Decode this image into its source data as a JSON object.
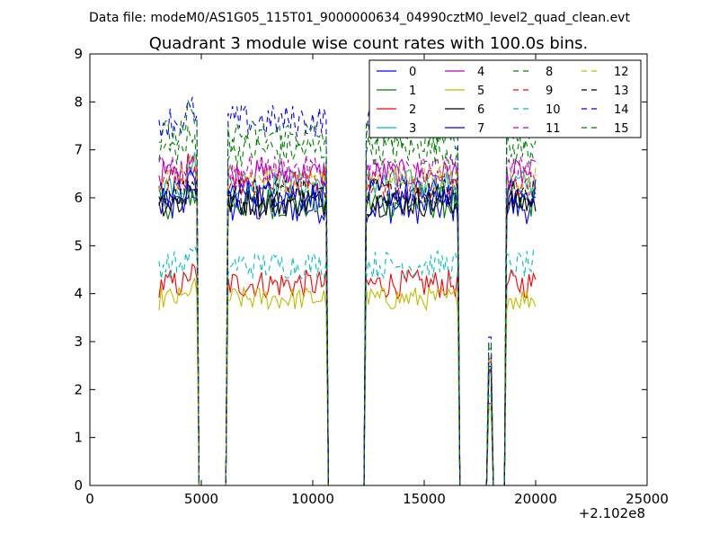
{
  "figure": {
    "suptitle": "Data file: modeM0/AS1G05_115T01_9000000634_04990cztM0_level2_quad_clean.evt"
  },
  "chart_data": {
    "type": "line",
    "title": "Quadrant 3 module wise count rates with 100.0s bins.",
    "xlabel": "",
    "ylabel": "",
    "x_offset_label": "+2.102e8",
    "xlim": [
      0,
      25000
    ],
    "ylim": [
      0,
      9
    ],
    "x_ticks": [
      0,
      5000,
      10000,
      15000,
      20000,
      25000
    ],
    "y_ticks": [
      0,
      1,
      2,
      3,
      4,
      5,
      6,
      7,
      8,
      9
    ],
    "grid": false,
    "legend_placement": "top-right",
    "legend_columns": 4,
    "segments": [
      {
        "start": 3100,
        "end": 4800
      },
      {
        "start": 6200,
        "end": 10600
      },
      {
        "start": 12400,
        "end": 16500
      },
      {
        "start": 18700,
        "end": 20000
      }
    ],
    "gaps": [
      {
        "start": 4800,
        "end": 6200
      },
      {
        "start": 10600,
        "end": 12400
      },
      {
        "start": 16500,
        "end": 18700
      }
    ],
    "spike": {
      "x": 17950,
      "level_fraction": 0.97
    },
    "series": [
      {
        "name": "0",
        "color": "#0000ff",
        "dash": "solid",
        "level": 5.8,
        "noise": 0.35
      },
      {
        "name": "1",
        "color": "#008000",
        "dash": "solid",
        "level": 5.9,
        "noise": 0.35
      },
      {
        "name": "2",
        "color": "#ff0000",
        "dash": "solid",
        "level": 4.2,
        "noise": 0.3
      },
      {
        "name": "3",
        "color": "#00bfbf",
        "dash": "solid",
        "level": 6.3,
        "noise": 0.3
      },
      {
        "name": "4",
        "color": "#bf00bf",
        "dash": "solid",
        "level": 6.5,
        "noise": 0.3
      },
      {
        "name": "5",
        "color": "#bfbf00",
        "dash": "solid",
        "level": 3.9,
        "noise": 0.25
      },
      {
        "name": "6",
        "color": "#000000",
        "dash": "solid",
        "level": 5.9,
        "noise": 0.3
      },
      {
        "name": "7",
        "color": "#0000ff",
        "dash": "solid",
        "level": 6.1,
        "noise": 0.3
      },
      {
        "name": "8",
        "color": "#008000",
        "dash": "dashed",
        "level": 7.0,
        "noise": 0.35
      },
      {
        "name": "9",
        "color": "#ff0000",
        "dash": "dashed",
        "level": 6.3,
        "noise": 0.3
      },
      {
        "name": "10",
        "color": "#00bfbf",
        "dash": "dashed",
        "level": 4.6,
        "noise": 0.3
      },
      {
        "name": "11",
        "color": "#bf00bf",
        "dash": "dashed",
        "level": 6.6,
        "noise": 0.3
      },
      {
        "name": "12",
        "color": "#bfbf00",
        "dash": "dashed",
        "level": 6.4,
        "noise": 0.3
      },
      {
        "name": "13",
        "color": "#000000",
        "dash": "dashed",
        "level": 6.1,
        "noise": 0.3
      },
      {
        "name": "14",
        "color": "#0000ff",
        "dash": "dashed",
        "level": 7.6,
        "noise": 0.35
      },
      {
        "name": "15",
        "color": "#008000",
        "dash": "dashed",
        "level": 7.3,
        "noise": 0.35
      }
    ]
  }
}
